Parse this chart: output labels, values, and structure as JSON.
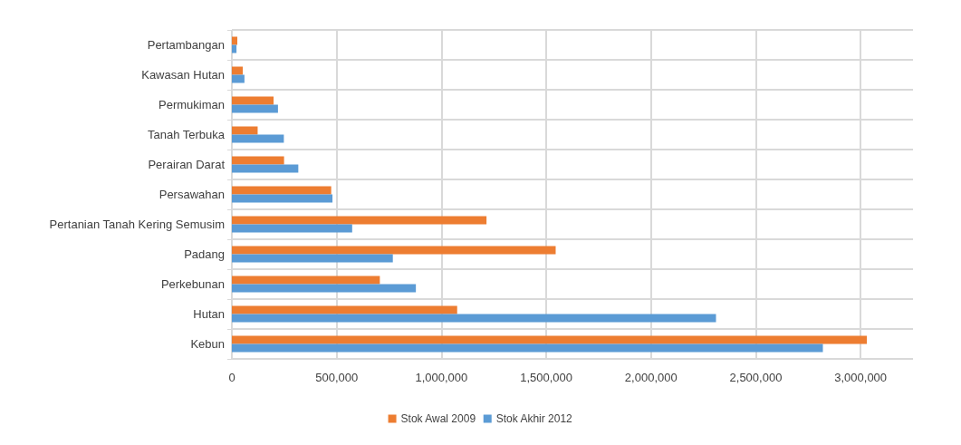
{
  "chart_data": {
    "type": "bar",
    "orientation": "horizontal",
    "categories": [
      "Pertambangan",
      "Kawasan Hutan",
      "Permukiman",
      "Tanah Terbuka",
      "Perairan Darat",
      "Persawahan",
      "Pertanian Tanah Kering Semusim",
      "Padang",
      "Perkebunan",
      "Hutan",
      "Kebun"
    ],
    "series": [
      {
        "name": "Stok Awal 2009",
        "color": "#ed7d31",
        "values": [
          26000,
          52000,
          199000,
          123000,
          249000,
          474000,
          1215000,
          1545000,
          706000,
          1075000,
          3030000
        ]
      },
      {
        "name": "Stok Akhir 2012",
        "color": "#5b9bd5",
        "values": [
          22000,
          60000,
          220000,
          248000,
          317000,
          480000,
          574000,
          768000,
          878000,
          2310000,
          2820000
        ]
      }
    ],
    "xlim": [
      0,
      3250000
    ],
    "xticks": [
      0,
      {
        "value": 500000,
        "label": "500,000"
      },
      {
        "value": 1000000,
        "label": "1,000,000"
      },
      {
        "value": 1500000,
        "label": "1,500,000"
      },
      {
        "value": 2000000,
        "label": "2,000,000"
      },
      {
        "value": 2500000,
        "label": "2,500,000"
      },
      {
        "value": 3000000,
        "label": "3,000,000"
      }
    ],
    "grid": true,
    "legend": "bottom"
  }
}
